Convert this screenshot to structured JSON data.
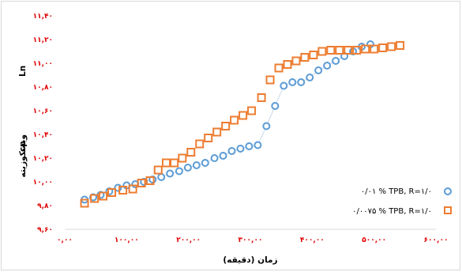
{
  "chart_data": {
    "type": "scatter",
    "title": "",
    "xlabel": "زمان (دقیقه)",
    "ylabel_parts": [
      "cp",
      "ویسکوزیته",
      "Ln"
    ],
    "x_tick_labels": [
      "۰,۰۰",
      "۱۰۰,۰۰",
      "۲۰۰,۰۰",
      "۳۰۰,۰۰",
      "۴۰۰,۰۰",
      "۵۰۰,۰۰",
      "۶۰۰,۰۰"
    ],
    "y_tick_labels": [
      "۹,۶۰",
      "۹,۸۰",
      "۱۰,۰۰",
      "۱۰,۲۰",
      "۱۰,۴۰",
      "۱۰,۶۰",
      "۱۰,۸۰",
      "۱۱,۰۰",
      "۱۱,۲۰",
      "۱۱,۴۰"
    ],
    "xlim": [
      0,
      600
    ],
    "ylim": [
      9.6,
      11.4
    ],
    "grid": false,
    "legend_position": "right",
    "series": [
      {
        "name": "۰/۰۱ % TPB, R=۱/۰",
        "marker": "circle",
        "color": "#5b9bd5",
        "connected": true,
        "points": [
          [
            32,
            9.85
          ],
          [
            46,
            9.87
          ],
          [
            58,
            9.89
          ],
          [
            72,
            9.92
          ],
          [
            86,
            9.95
          ],
          [
            100,
            9.97
          ],
          [
            114,
            9.98
          ],
          [
            128,
            10.0
          ],
          [
            142,
            10.02
          ],
          [
            156,
            10.04
          ],
          [
            170,
            10.07
          ],
          [
            185,
            10.09
          ],
          [
            199,
            10.12
          ],
          [
            213,
            10.14
          ],
          [
            227,
            10.16
          ],
          [
            242,
            10.2
          ],
          [
            256,
            10.22
          ],
          [
            270,
            10.26
          ],
          [
            284,
            10.28
          ],
          [
            298,
            10.3
          ],
          [
            312,
            10.31
          ],
          [
            326,
            10.47
          ],
          [
            340,
            10.64
          ],
          [
            354,
            10.81
          ],
          [
            368,
            10.84
          ],
          [
            382,
            10.84
          ],
          [
            396,
            10.88
          ],
          [
            410,
            10.94
          ],
          [
            424,
            10.98
          ],
          [
            438,
            11.02
          ],
          [
            452,
            11.06
          ],
          [
            466,
            11.1
          ],
          [
            480,
            11.14
          ],
          [
            494,
            11.16
          ]
        ]
      },
      {
        "name": "۰/۰۰۷۵ % TPB, R=۱/۰",
        "marker": "square",
        "color": "#ed7d31",
        "connected": false,
        "points": [
          [
            32,
            9.82
          ],
          [
            48,
            9.86
          ],
          [
            62,
            9.88
          ],
          [
            76,
            9.91
          ],
          [
            94,
            9.93
          ],
          [
            110,
            9.94
          ],
          [
            124,
            9.99
          ],
          [
            138,
            10.01
          ],
          [
            151,
            10.1
          ],
          [
            164,
            10.16
          ],
          [
            177,
            10.16
          ],
          [
            190,
            10.2
          ],
          [
            204,
            10.25
          ],
          [
            218,
            10.32
          ],
          [
            232,
            10.37
          ],
          [
            246,
            10.42
          ],
          [
            260,
            10.47
          ],
          [
            274,
            10.52
          ],
          [
            288,
            10.56
          ],
          [
            302,
            10.6
          ],
          [
            318,
            10.71
          ],
          [
            332,
            10.86
          ],
          [
            346,
            10.96
          ],
          [
            360,
            10.99
          ],
          [
            374,
            11.02
          ],
          [
            388,
            11.05
          ],
          [
            402,
            11.07
          ],
          [
            416,
            11.1
          ],
          [
            430,
            11.11
          ],
          [
            444,
            11.11
          ],
          [
            458,
            11.11
          ],
          [
            472,
            11.11
          ],
          [
            486,
            11.12
          ],
          [
            500,
            11.12
          ],
          [
            514,
            11.13
          ],
          [
            528,
            11.14
          ],
          [
            542,
            11.15
          ]
        ]
      }
    ]
  }
}
